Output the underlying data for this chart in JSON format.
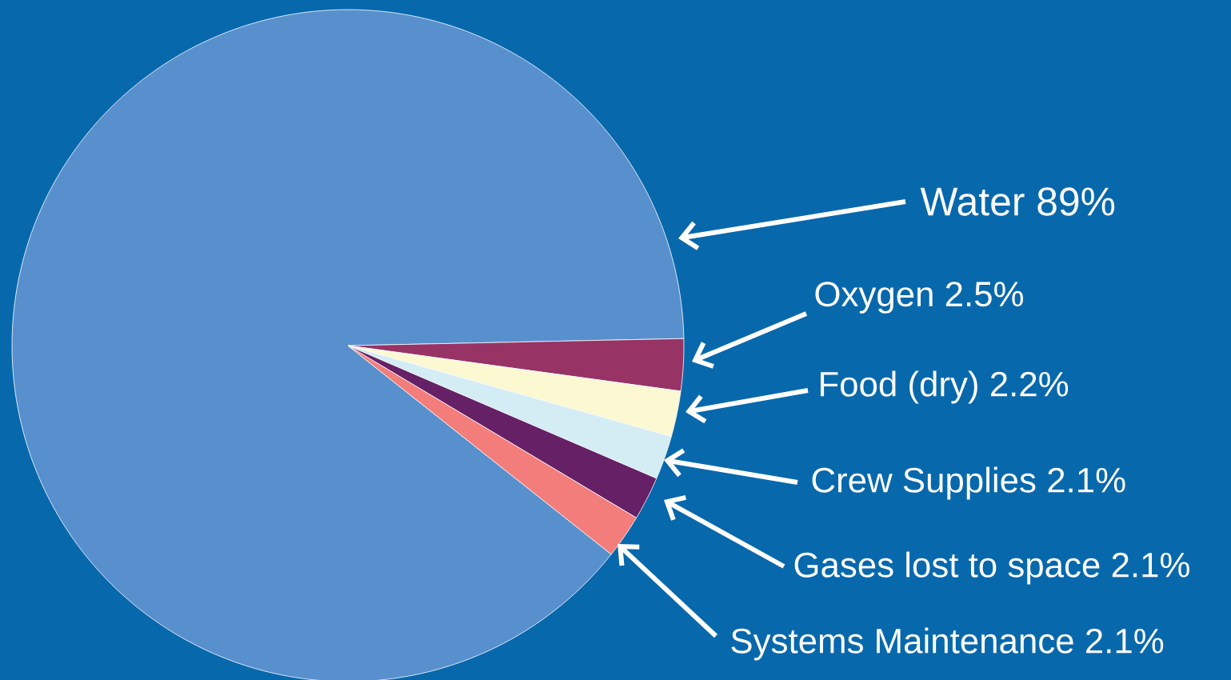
{
  "chart_data": {
    "type": "pie",
    "categories": [
      "Water",
      "Oxygen",
      "Food (dry)",
      "Crew Supplies",
      "Gases lost to space",
      "Systems Maintenance"
    ],
    "values": [
      89,
      2.5,
      2.2,
      2.1,
      2.1,
      2.1
    ],
    "value_labels": [
      "89%",
      "2.5%",
      "2.2%",
      "2.1%",
      "2.1%",
      "2.1%"
    ],
    "colors": [
      "#5890cd",
      "#983366",
      "#fbf8d2",
      "#d4ecf4",
      "#652066",
      "#f27d7b"
    ]
  }
}
